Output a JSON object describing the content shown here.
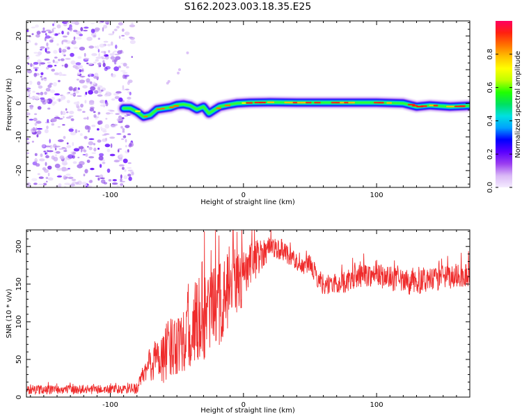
{
  "title": "S162.2023.003.18.35.E25",
  "colors": {
    "snr_line": "#ef2b2b",
    "speckle": "#8a2be2",
    "axis": "#000000"
  },
  "chart_data": [
    {
      "type": "heatmap",
      "id": "spectrogram",
      "xlabel": "Height of straight line (km)",
      "ylabel": "Frequency (Hz)",
      "xlim": [
        -163,
        170
      ],
      "ylim": [
        -25,
        24.5
      ],
      "xticks": [
        -100,
        0,
        100
      ],
      "yticks": [
        -20,
        -10,
        0,
        10,
        20
      ],
      "colorbar": {
        "label": "Normalized spectral amplitude",
        "range": [
          0,
          1
        ],
        "ticks": [
          0.0,
          0.2,
          0.4,
          0.6,
          0.8
        ],
        "colormap": [
          "#f5ecff",
          "#d9b8f6",
          "#9a3df0",
          "#5a00ff",
          "#0000ff",
          "#00a0ff",
          "#00e0e0",
          "#00e060",
          "#20ff00",
          "#c0ff00",
          "#ffff00",
          "#ffc000",
          "#ff7000",
          "#ff2010",
          "#ff0060"
        ]
      },
      "noise_region": {
        "x_start": -163,
        "x_end": -87,
        "amplitude": "0.05-0.3"
      },
      "ridge_centerline": [
        [
          -90,
          -1.5
        ],
        [
          -85,
          -1.5
        ],
        [
          -80,
          -2.5
        ],
        [
          -75,
          -4.0
        ],
        [
          -70,
          -3.5
        ],
        [
          -65,
          -1.8
        ],
        [
          -60,
          -1.5
        ],
        [
          -55,
          -1.2
        ],
        [
          -50,
          -0.5
        ],
        [
          -45,
          -0.3
        ],
        [
          -40,
          -0.7
        ],
        [
          -35,
          -1.8
        ],
        [
          -30,
          -1.0
        ],
        [
          -26,
          -3.0
        ],
        [
          -22,
          -2.0
        ],
        [
          -18,
          -1.0
        ],
        [
          -12,
          -0.5
        ],
        [
          -5,
          0.0
        ],
        [
          5,
          0.2
        ],
        [
          20,
          0.3
        ],
        [
          40,
          0.2
        ],
        [
          60,
          0.2
        ],
        [
          80,
          0.2
        ],
        [
          100,
          0.2
        ],
        [
          120,
          0.0
        ],
        [
          130,
          -1.0
        ],
        [
          140,
          -0.6
        ],
        [
          155,
          -1.0
        ],
        [
          165,
          -0.8
        ],
        [
          170,
          -0.7
        ]
      ],
      "ridge_peak_amplitude": 0.9
    },
    {
      "type": "line",
      "id": "snr",
      "xlabel": "Height of straight line (km)",
      "ylabel": "SNR (10 * v/v)",
      "xlim": [
        -163,
        170
      ],
      "ylim": [
        0,
        222
      ],
      "xticks": [
        -100,
        0,
        100
      ],
      "yticks": [
        0,
        50,
        100,
        150,
        200
      ],
      "series": [
        {
          "color": "#ef2b2b",
          "envelope": {
            "x": [
              -163,
              -120,
              -90,
              -80,
              -75,
              -70,
              -60,
              -50,
              -40,
              -30,
              -20,
              -10,
              0,
              10,
              20,
              30,
              40,
              45,
              50,
              55,
              60,
              70,
              80,
              90,
              100,
              110,
              120,
              130,
              140,
              150,
              160,
              170
            ],
            "mean": [
              10,
              10,
              10,
              12,
              30,
              45,
              55,
              75,
              90,
              105,
              120,
              140,
              160,
              185,
              200,
              195,
              180,
              172,
              178,
              160,
              150,
              150,
              155,
              162,
              162,
              158,
              152,
              152,
              155,
              158,
              160,
              163
            ],
            "spread": [
              6,
              6,
              6,
              8,
              14,
              25,
              38,
              45,
              55,
              60,
              60,
              55,
              40,
              25,
              15,
              14,
              12,
              10,
              12,
              14,
              14,
              14,
              15,
              15,
              16,
              16,
              16,
              16,
              16,
              16,
              16,
              18
            ]
          }
        }
      ]
    }
  ]
}
